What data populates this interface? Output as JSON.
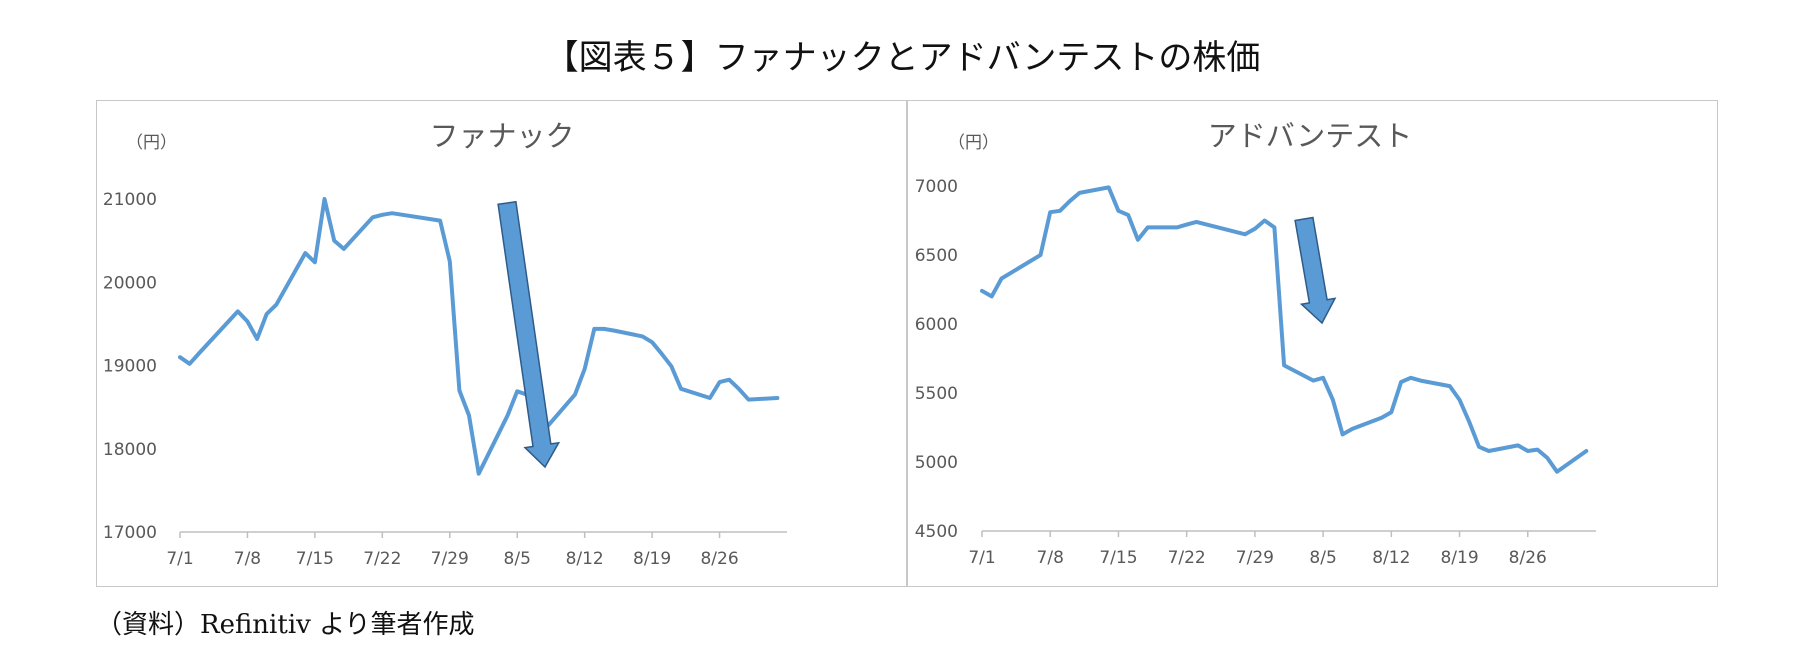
{
  "page_title": "【図表５】ファナックとアドバンテストの株価",
  "source_note": "（資料）Refinitiv より筆者作成",
  "colors": {
    "line": "#5b9bd5",
    "arrow_fill": "#5b9bd5",
    "arrow_stroke": "#2e5b8a",
    "axis": "#bfbfbf",
    "text": "#595959"
  },
  "chart_data": [
    {
      "type": "line",
      "title": "ファナック",
      "unit": "（円）",
      "ylim": [
        17000,
        21000
      ],
      "yticks": [
        17000,
        18000,
        19000,
        20000,
        21000
      ],
      "xticks": [
        "7/1",
        "7/8",
        "7/15",
        "7/22",
        "7/29",
        "8/5",
        "8/12",
        "8/19",
        "8/26"
      ],
      "grid": false,
      "annotation": "downward arrow",
      "series": [
        {
          "x": [
            "7/1",
            "7/2",
            "7/3",
            "7/7",
            "7/8",
            "7/9",
            "7/10",
            "7/11",
            "7/14",
            "7/15",
            "7/16",
            "7/17",
            "7/18",
            "7/21",
            "7/22",
            "7/23",
            "7/28",
            "7/29",
            "7/30",
            "7/31",
            "8/1",
            "8/4",
            "8/5",
            "8/6",
            "8/7",
            "8/8",
            "8/11",
            "8/12",
            "8/13",
            "8/14",
            "8/15",
            "8/18",
            "8/19",
            "8/20",
            "8/21",
            "8/22",
            "8/25",
            "8/26",
            "8/27",
            "8/28",
            "8/29",
            "9/1"
          ],
          "values": [
            19100,
            19020,
            19150,
            19650,
            19530,
            19320,
            19620,
            19730,
            20350,
            20240,
            21000,
            20500,
            20400,
            20780,
            20810,
            20830,
            20740,
            20250,
            18700,
            18400,
            17700,
            18400,
            18690,
            18650,
            18300,
            18250,
            18650,
            18960,
            19440,
            19440,
            19420,
            19350,
            19280,
            19140,
            18990,
            18720,
            18610,
            18800,
            18830,
            18720,
            18590,
            18610
          ]
        }
      ]
    },
    {
      "type": "line",
      "title": "アドバンテスト",
      "unit": "（円）",
      "ylim": [
        4500,
        7000
      ],
      "yticks": [
        4500,
        5000,
        5500,
        6000,
        6500,
        7000
      ],
      "xticks": [
        "7/1",
        "7/8",
        "7/15",
        "7/22",
        "7/29",
        "8/5",
        "8/12",
        "8/19",
        "8/26"
      ],
      "grid": false,
      "annotation": "downward arrow",
      "series": [
        {
          "x": [
            "7/1",
            "7/2",
            "7/3",
            "7/7",
            "7/8",
            "7/9",
            "7/10",
            "7/11",
            "7/14",
            "7/15",
            "7/16",
            "7/17",
            "7/18",
            "7/21",
            "7/22",
            "7/23",
            "7/28",
            "7/29",
            "7/30",
            "7/31",
            "8/1",
            "8/4",
            "8/5",
            "8/6",
            "8/7",
            "8/8",
            "8/11",
            "8/12",
            "8/13",
            "8/14",
            "8/15",
            "8/18",
            "8/19",
            "8/20",
            "8/21",
            "8/22",
            "8/25",
            "8/26",
            "8/27",
            "8/28",
            "8/29",
            "9/1"
          ],
          "values": [
            6240,
            6200,
            6330,
            6500,
            6810,
            6820,
            6890,
            6950,
            6990,
            6820,
            6790,
            6610,
            6700,
            6700,
            6720,
            6740,
            6650,
            6690,
            6750,
            6700,
            5700,
            5590,
            5610,
            5450,
            5200,
            5240,
            5320,
            5360,
            5580,
            5610,
            5590,
            5550,
            5450,
            5290,
            5110,
            5080,
            5120,
            5080,
            5090,
            5030,
            4930,
            5080
          ]
        }
      ]
    }
  ]
}
